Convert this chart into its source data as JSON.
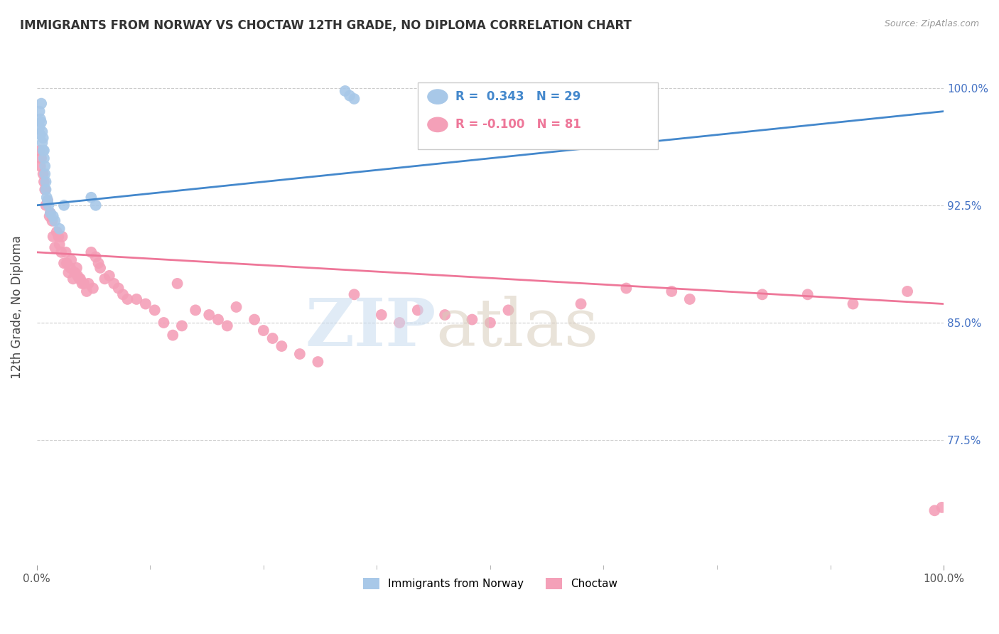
{
  "title": "IMMIGRANTS FROM NORWAY VS CHOCTAW 12TH GRADE, NO DIPLOMA CORRELATION CHART",
  "source": "Source: ZipAtlas.com",
  "ylabel": "12th Grade, No Diploma",
  "ytick_labels": [
    "100.0%",
    "92.5%",
    "85.0%",
    "77.5%"
  ],
  "ytick_values": [
    1.0,
    0.925,
    0.85,
    0.775
  ],
  "blue_color": "#A8C8E8",
  "pink_color": "#F4A0B8",
  "blue_line_color": "#4488CC",
  "pink_line_color": "#EE7799",
  "norway_x": [
    0.003,
    0.003,
    0.004,
    0.004,
    0.005,
    0.005,
    0.006,
    0.006,
    0.007,
    0.007,
    0.008,
    0.008,
    0.009,
    0.009,
    0.01,
    0.01,
    0.011,
    0.012,
    0.013,
    0.015,
    0.018,
    0.02,
    0.025,
    0.03,
    0.06,
    0.065,
    0.34,
    0.345,
    0.35
  ],
  "norway_y": [
    0.975,
    0.985,
    0.97,
    0.98,
    0.978,
    0.99,
    0.972,
    0.965,
    0.96,
    0.968,
    0.955,
    0.96,
    0.95,
    0.945,
    0.94,
    0.935,
    0.93,
    0.928,
    0.925,
    0.92,
    0.918,
    0.915,
    0.91,
    0.925,
    0.93,
    0.925,
    0.998,
    0.995,
    0.993
  ],
  "choctaw_x": [
    0.003,
    0.004,
    0.005,
    0.007,
    0.008,
    0.009,
    0.01,
    0.012,
    0.014,
    0.015,
    0.017,
    0.018,
    0.02,
    0.022,
    0.024,
    0.025,
    0.027,
    0.028,
    0.03,
    0.032,
    0.033,
    0.035,
    0.037,
    0.038,
    0.04,
    0.042,
    0.044,
    0.045,
    0.047,
    0.048,
    0.05,
    0.052,
    0.055,
    0.057,
    0.06,
    0.062,
    0.065,
    0.068,
    0.07,
    0.075,
    0.08,
    0.085,
    0.09,
    0.095,
    0.1,
    0.11,
    0.12,
    0.13,
    0.14,
    0.15,
    0.155,
    0.16,
    0.175,
    0.19,
    0.2,
    0.21,
    0.22,
    0.24,
    0.25,
    0.26,
    0.27,
    0.29,
    0.31,
    0.35,
    0.38,
    0.4,
    0.42,
    0.45,
    0.48,
    0.5,
    0.52,
    0.6,
    0.65,
    0.7,
    0.72,
    0.8,
    0.85,
    0.9,
    0.96,
    0.99,
    0.998
  ],
  "choctaw_y": [
    0.96,
    0.95,
    0.955,
    0.945,
    0.94,
    0.935,
    0.925,
    0.928,
    0.918,
    0.92,
    0.915,
    0.905,
    0.898,
    0.908,
    0.905,
    0.9,
    0.895,
    0.905,
    0.888,
    0.895,
    0.888,
    0.882,
    0.885,
    0.89,
    0.878,
    0.882,
    0.885,
    0.88,
    0.878,
    0.878,
    0.875,
    0.875,
    0.87,
    0.875,
    0.895,
    0.872,
    0.892,
    0.888,
    0.885,
    0.878,
    0.88,
    0.875,
    0.872,
    0.868,
    0.865,
    0.865,
    0.862,
    0.858,
    0.85,
    0.842,
    0.875,
    0.848,
    0.858,
    0.855,
    0.852,
    0.848,
    0.86,
    0.852,
    0.845,
    0.84,
    0.835,
    0.83,
    0.825,
    0.868,
    0.855,
    0.85,
    0.858,
    0.855,
    0.852,
    0.85,
    0.858,
    0.862,
    0.872,
    0.87,
    0.865,
    0.868,
    0.868,
    0.862,
    0.87,
    0.73,
    0.732
  ],
  "xlim": [
    0,
    1.0
  ],
  "ylim": [
    0.695,
    1.025
  ],
  "blue_trend": [
    0.0,
    1.0,
    0.925,
    0.985
  ],
  "pink_trend": [
    0.0,
    1.0,
    0.895,
    0.862
  ]
}
